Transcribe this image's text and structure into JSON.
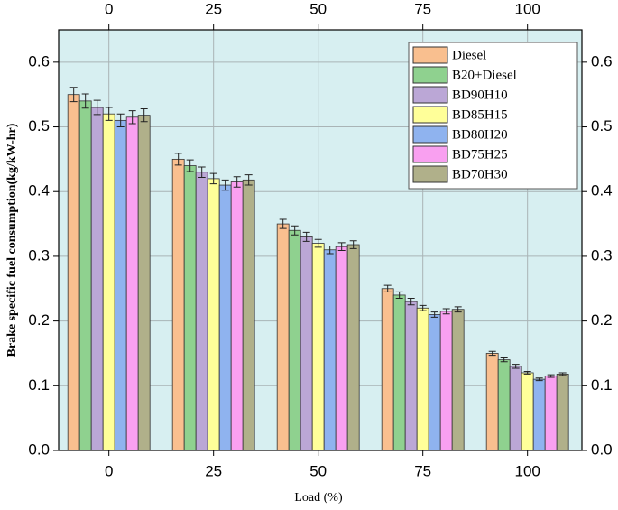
{
  "chart_data": {
    "type": "bar",
    "x_label": "Load (%)",
    "y_label": "Brake specific fuel consumption(kg/kW-hr)",
    "categories": [
      "0",
      "25",
      "50",
      "75",
      "100"
    ],
    "series": [
      {
        "name": "Diesel",
        "color": "#f9bf8f",
        "values": [
          0.55,
          0.45,
          0.35,
          0.25,
          0.15
        ],
        "errors": [
          0.011,
          0.009,
          0.007,
          0.005,
          0.003
        ]
      },
      {
        "name": "B20+Diesel",
        "color": "#8fd18f",
        "values": [
          0.54,
          0.44,
          0.34,
          0.24,
          0.14
        ],
        "errors": [
          0.011,
          0.009,
          0.007,
          0.005,
          0.003
        ]
      },
      {
        "name": "BD90H10",
        "color": "#bba7d6",
        "values": [
          0.53,
          0.43,
          0.33,
          0.23,
          0.13
        ],
        "errors": [
          0.011,
          0.008,
          0.007,
          0.005,
          0.003
        ]
      },
      {
        "name": "BD85H15",
        "color": "#ffff99",
        "values": [
          0.52,
          0.42,
          0.32,
          0.22,
          0.12
        ],
        "errors": [
          0.01,
          0.008,
          0.006,
          0.004,
          0.002
        ]
      },
      {
        "name": "BD80H20",
        "color": "#8fb3ef",
        "values": [
          0.51,
          0.41,
          0.31,
          0.21,
          0.11
        ],
        "errors": [
          0.01,
          0.008,
          0.006,
          0.004,
          0.002
        ]
      },
      {
        "name": "BD75H25",
        "color": "#f9a0f0",
        "values": [
          0.515,
          0.415,
          0.315,
          0.215,
          0.115
        ],
        "errors": [
          0.01,
          0.008,
          0.006,
          0.004,
          0.002
        ]
      },
      {
        "name": "BD70H30",
        "color": "#b0b08a",
        "values": [
          0.518,
          0.418,
          0.318,
          0.218,
          0.118
        ],
        "errors": [
          0.01,
          0.008,
          0.006,
          0.004,
          0.002
        ]
      }
    ],
    "ylim": [
      0,
      0.65
    ],
    "yticks": [
      {
        "value": 0,
        "label": "0.0"
      },
      0.1,
      0.2,
      0.3,
      0.4,
      0.5,
      0.6
    ],
    "grid": true,
    "legend": "top-right",
    "background": "#d7eff1"
  }
}
